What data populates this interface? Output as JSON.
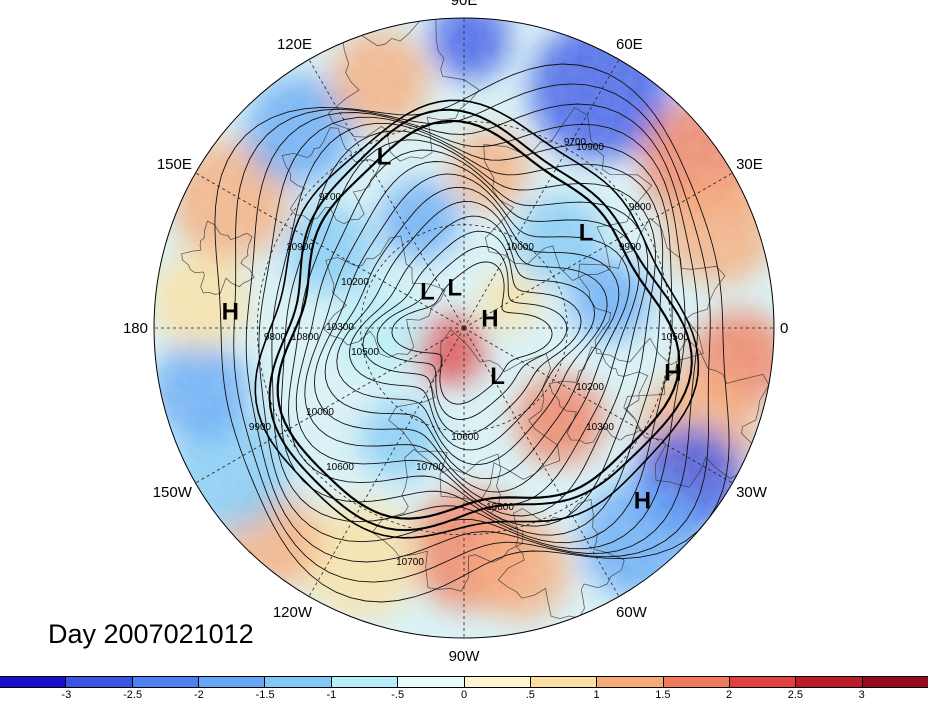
{
  "map": {
    "title": "Day 2007021012",
    "longitude_labels": [
      {
        "text": "90E",
        "lon": 90
      },
      {
        "text": "60E",
        "lon": 60
      },
      {
        "text": "30E",
        "lon": 30
      },
      {
        "text": "0",
        "lon": 0
      },
      {
        "text": "30W",
        "lon": -30
      },
      {
        "text": "60W",
        "lon": -60
      },
      {
        "text": "90W",
        "lon": -90
      },
      {
        "text": "120W",
        "lon": -120
      },
      {
        "text": "150W",
        "lon": -150
      },
      {
        "text": "180",
        "lon": 180
      },
      {
        "text": "150E",
        "lon": 150
      },
      {
        "text": "120E",
        "lon": 120
      }
    ],
    "pressure_centers": [
      {
        "label": "L",
        "lon": 115,
        "lat": 35
      },
      {
        "label": "L",
        "lon": 38,
        "lat": 45
      },
      {
        "label": "L",
        "lon": 135,
        "lat": 75
      },
      {
        "label": "L",
        "lon": 103,
        "lat": 78
      },
      {
        "label": "H",
        "lon": 20,
        "lat": 82
      },
      {
        "label": "L",
        "lon": -55,
        "lat": 73
      },
      {
        "label": "H",
        "lon": -12,
        "lat": 28
      },
      {
        "label": "H",
        "lon": -44,
        "lat": 18
      },
      {
        "label": "H",
        "lon": 176,
        "lat": 22
      }
    ],
    "contour_labels": [
      "9700",
      "9800",
      "9900",
      "10000",
      "10200",
      "10300",
      "10500",
      "10600",
      "10700",
      "10800",
      "10900"
    ],
    "colorbar": {
      "ticks": [
        "-3",
        "-2.5",
        "-2",
        "-1.5",
        "-1",
        "-.5",
        "0",
        ".5",
        "1",
        "1.5",
        "2",
        "2.5",
        "3"
      ],
      "colors": [
        "#1a0dcc",
        "#3a55e6",
        "#4b82f0",
        "#62a6f5",
        "#80c8f5",
        "#b5eef8",
        "#e6fbfb",
        "#fdf5d0",
        "#fbdfa0",
        "#f6aa78",
        "#f07a5a",
        "#e04040",
        "#bb1c2a",
        "#9a0a1e"
      ]
    }
  }
}
